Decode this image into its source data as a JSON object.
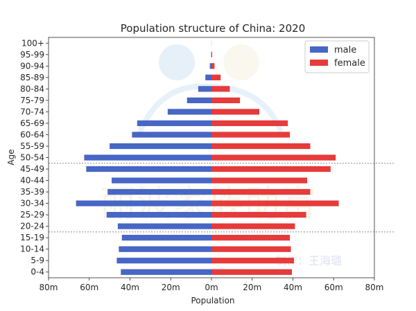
{
  "chart_data": {
    "type": "bar",
    "orientation": "horizontal",
    "title": "Population structure of China: 2020",
    "xlabel": "Population",
    "ylabel": "Age",
    "xlim": [
      -80,
      80
    ],
    "x_unit": "m",
    "x_ticks": [
      -80,
      -60,
      -40,
      -20,
      0,
      20,
      40,
      60,
      80
    ],
    "x_tick_labels": [
      "80m",
      "60m",
      "40m",
      "20m",
      "0m",
      "20m",
      "40m",
      "60m",
      "80m"
    ],
    "categories": [
      "0-4",
      "5-9",
      "10-14",
      "15-19",
      "20-24",
      "25-29",
      "30-34",
      "35-39",
      "40-44",
      "45-49",
      "50-54",
      "55-59",
      "60-64",
      "65-69",
      "70-74",
      "75-79",
      "80-84",
      "85-89",
      "90-94",
      "95-99",
      "100+"
    ],
    "series": [
      {
        "name": "male",
        "color": "#4766c5",
        "values": [
          44.5,
          46.5,
          45.5,
          44,
          46,
          51.5,
          66.5,
          51,
          49,
          61.5,
          62.5,
          50,
          39,
          36.5,
          21.5,
          12,
          6.5,
          3,
          0.8,
          0.15,
          0.02
        ]
      },
      {
        "name": "female",
        "color": "#e53b3b",
        "values": [
          39.5,
          40.5,
          39,
          38.5,
          41,
          46.5,
          62.5,
          48.5,
          47,
          58.5,
          61,
          48.5,
          38.5,
          37.5,
          23.5,
          14,
          9,
          4.5,
          1.5,
          0.35,
          0.05
        ]
      }
    ],
    "reference_lines": [
      {
        "between": [
          "15-19",
          "20-24"
        ],
        "style": "dashed"
      },
      {
        "between": [
          "45-49",
          "50-54"
        ],
        "style": "dashed"
      }
    ],
    "legend": {
      "position": "top-right",
      "entries": [
        "male",
        "female"
      ]
    },
    "grid": false
  },
  "watermark": {
    "text_top": "丽波家族助富",
    "text_bottom": "制作：王海璐"
  }
}
